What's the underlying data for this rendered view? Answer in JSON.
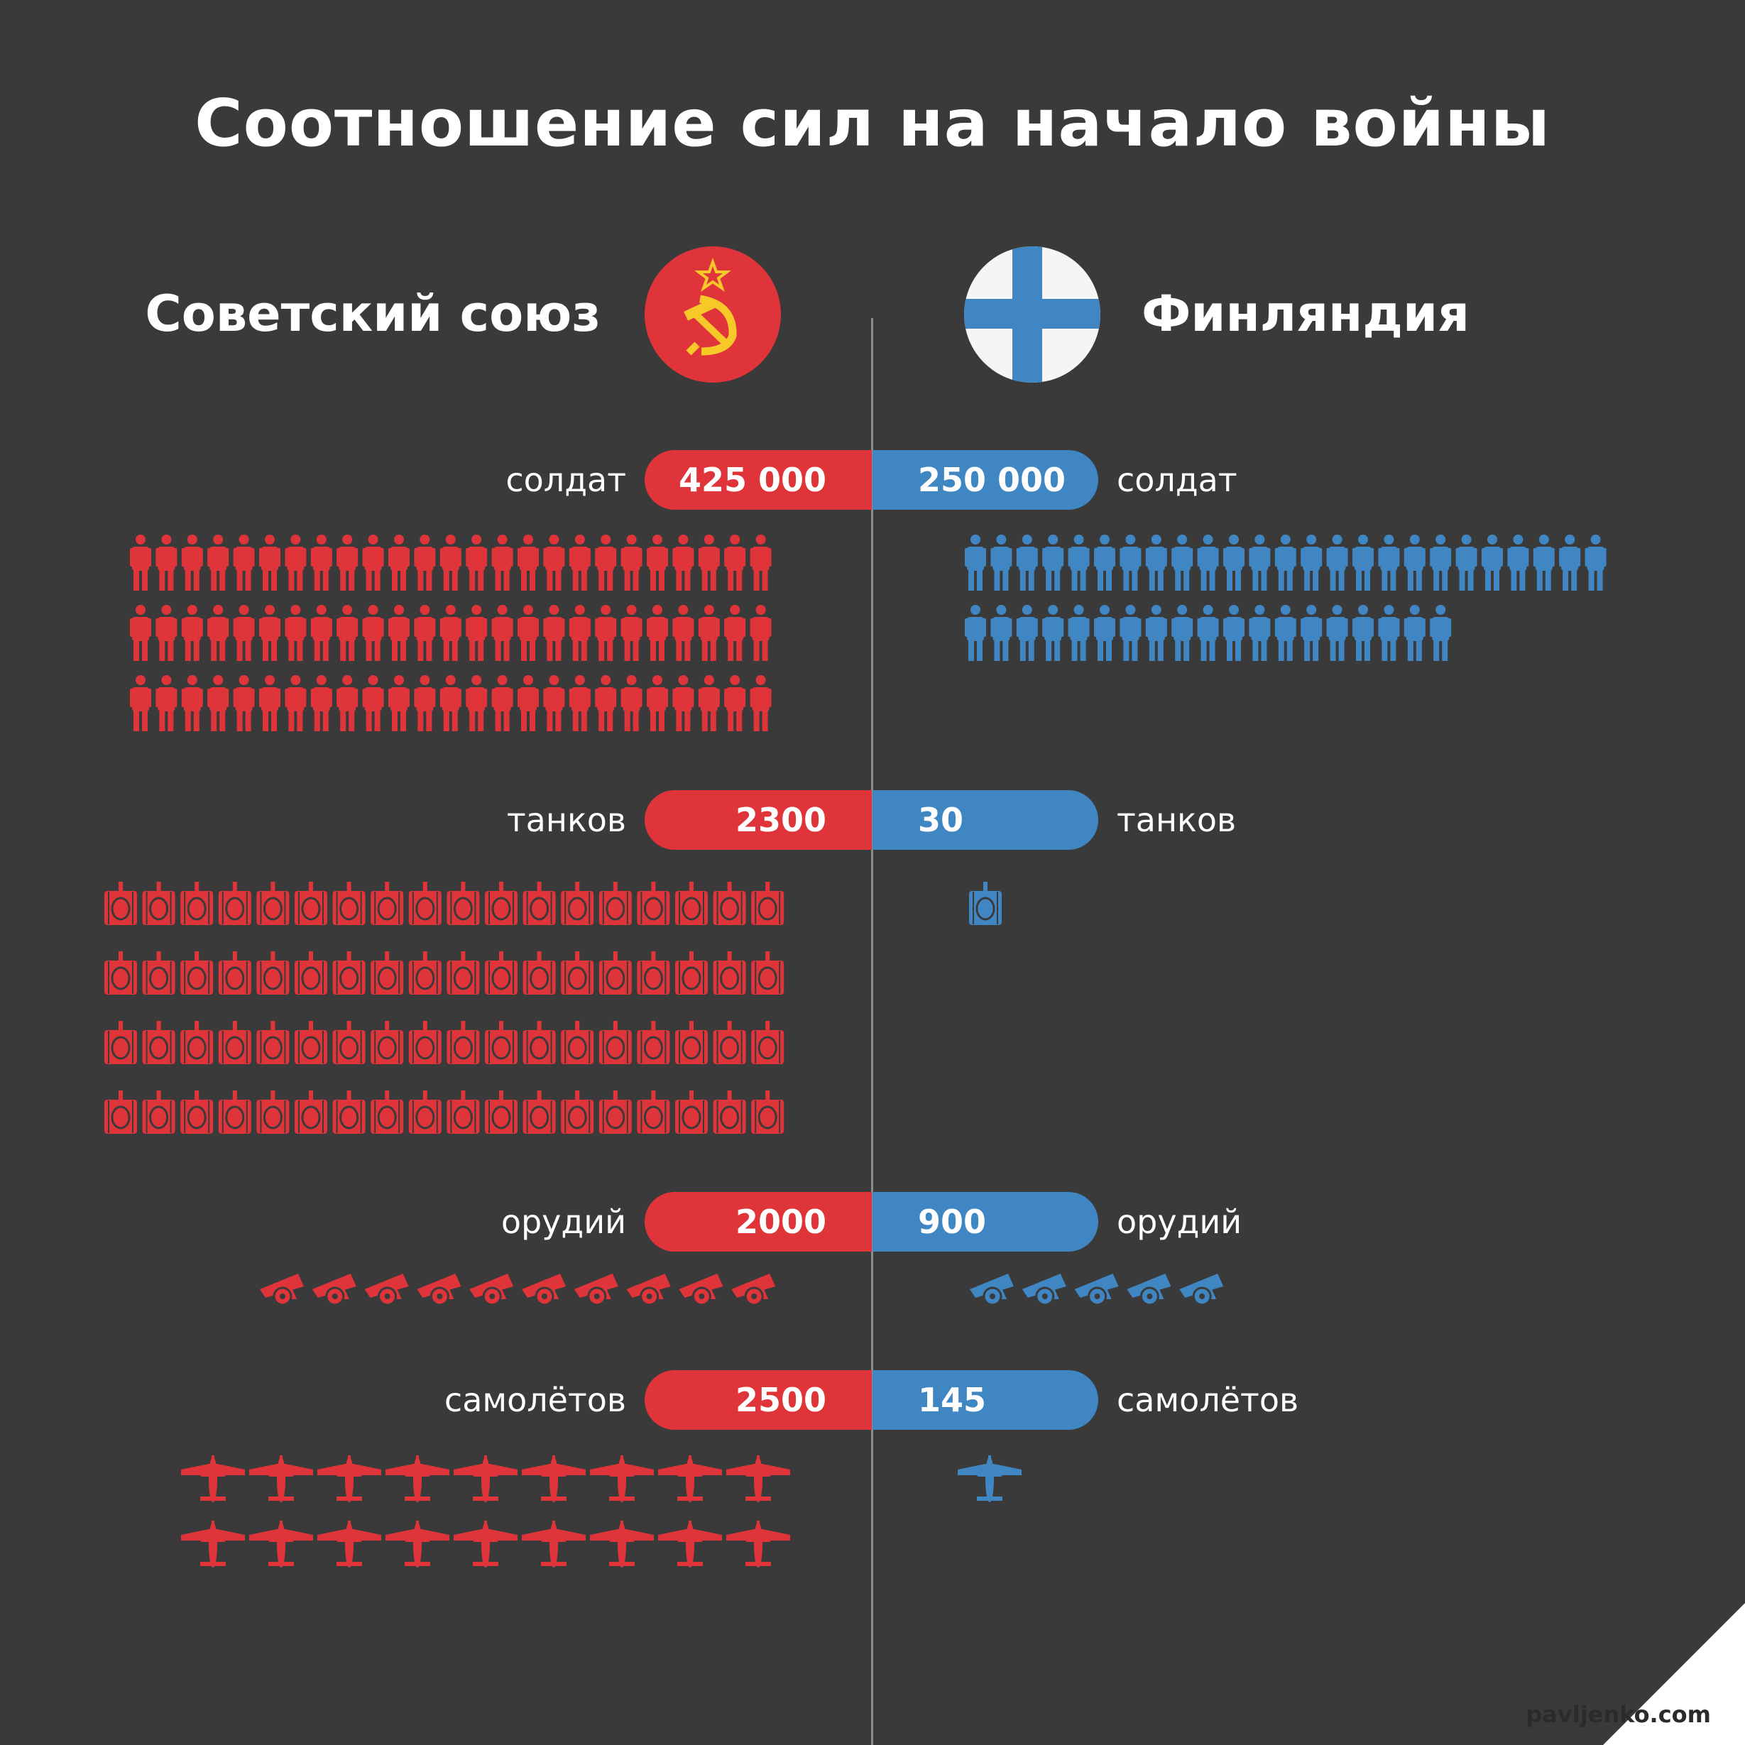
{
  "title": "Соотношение сил на начало войны",
  "sides": {
    "left": {
      "name": "Советский союз",
      "flag_icon": "ussr-flag-icon",
      "color": "#e0343b"
    },
    "right": {
      "name": "Финляндия",
      "flag_icon": "finland-flag-icon",
      "color": "#3f86c2"
    }
  },
  "chart_data": {
    "type": "pictogram",
    "title": "Соотношение сил на начало войны",
    "series": [
      {
        "name": "Советский союз",
        "values": [
          425000,
          2300,
          2000,
          2500
        ]
      },
      {
        "name": "Финляндия",
        "values": [
          250000,
          30,
          900,
          145
        ]
      }
    ],
    "categories": [
      "солдат",
      "танков",
      "орудий",
      "самолётов"
    ],
    "rows": [
      {
        "category": "солдат",
        "left_label": "425 000",
        "right_label": "250 000",
        "icon": "soldier-icon",
        "left_icons": 75,
        "right_icons": 44
      },
      {
        "category": "танков",
        "left_label": "2300",
        "right_label": "30",
        "icon": "tank-icon",
        "left_icons": 72,
        "right_icons": 1
      },
      {
        "category": "орудий",
        "left_label": "2000",
        "right_label": "900",
        "icon": "cannon-icon",
        "left_icons": 10,
        "right_icons": 5
      },
      {
        "category": "самолётов",
        "left_label": "2500",
        "right_label": "145",
        "icon": "plane-icon",
        "left_icons": 18,
        "right_icons": 1
      }
    ]
  },
  "footer": {
    "site": "pavljenko.com"
  }
}
